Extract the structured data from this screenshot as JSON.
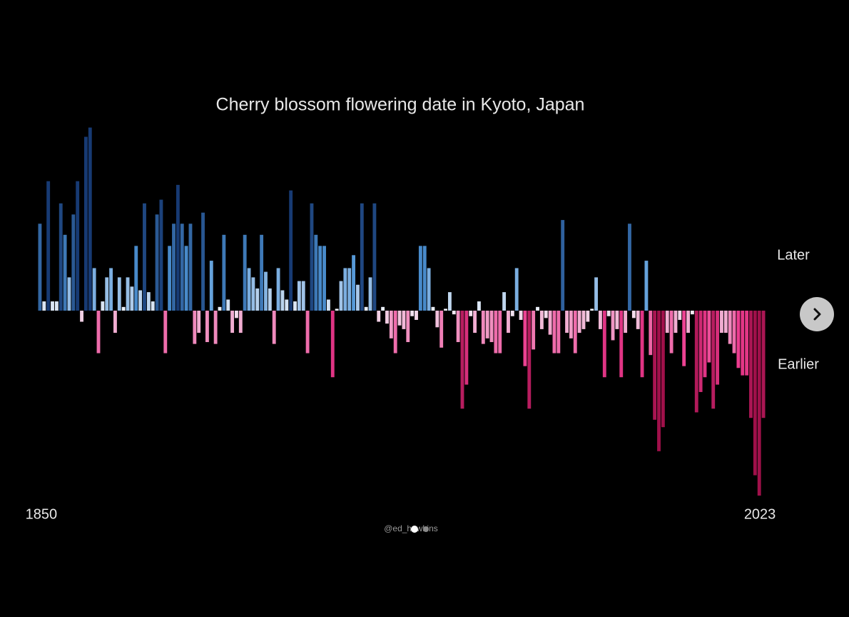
{
  "chart_data": {
    "type": "bar",
    "title": "Cherry blossom flowering date in Kyoto, Japan",
    "label_positive": "Later",
    "label_negative": "Earlier",
    "credit": "@ed_hawkins",
    "categories": [
      "1850",
      null,
      null,
      null,
      null,
      null,
      null,
      null,
      null,
      null,
      null,
      null,
      null,
      null,
      null,
      null,
      null,
      null,
      null,
      null,
      null,
      null,
      null,
      null,
      null,
      null,
      null,
      null,
      null,
      null,
      null,
      null,
      null,
      null,
      null,
      null,
      null,
      null,
      null,
      null,
      null,
      null,
      null,
      null,
      null,
      null,
      null,
      null,
      null,
      null,
      null,
      null,
      null,
      null,
      null,
      null,
      null,
      null,
      null,
      null,
      null,
      null,
      null,
      null,
      null,
      null,
      null,
      null,
      null,
      null,
      null,
      null,
      null,
      null,
      null,
      null,
      null,
      null,
      null,
      null,
      null,
      null,
      null,
      null,
      null,
      null,
      null,
      null,
      null,
      null,
      null,
      null,
      null,
      null,
      null,
      null,
      null,
      null,
      null,
      null,
      null,
      null,
      null,
      null,
      null,
      null,
      null,
      null,
      null,
      null,
      null,
      null,
      null,
      null,
      null,
      null,
      null,
      null,
      null,
      null,
      null,
      null,
      null,
      null,
      null,
      null,
      null,
      null,
      null,
      null,
      null,
      null,
      null,
      null,
      null,
      null,
      null,
      null,
      null,
      null,
      null,
      null,
      null,
      null,
      null,
      null,
      null,
      null,
      null,
      null,
      null,
      null,
      null,
      null,
      null,
      null,
      null,
      null,
      null,
      null,
      null,
      null,
      null,
      null,
      null,
      null,
      null,
      null,
      null,
      null,
      null,
      null,
      null,
      "2023"
    ],
    "values": [
      4.7,
      0.5,
      7.0,
      0.5,
      0.5,
      5.8,
      4.1,
      1.8,
      5.2,
      7.0,
      -0.6,
      9.4,
      9.9,
      2.3,
      -2.3,
      0.5,
      1.8,
      2.3,
      -1.2,
      1.8,
      0.2,
      1.8,
      1.3,
      3.5,
      1.1,
      5.8,
      1.0,
      0.5,
      5.2,
      6.0,
      -2.3,
      3.5,
      4.7,
      6.8,
      4.7,
      3.5,
      4.7,
      -1.8,
      -1.2,
      5.3,
      -1.7,
      2.7,
      -1.8,
      0.2,
      4.1,
      0.6,
      -1.2,
      -0.4,
      -1.2,
      4.1,
      2.3,
      1.8,
      1.2,
      4.1,
      2.1,
      1.2,
      -1.8,
      2.3,
      1.1,
      0.6,
      6.5,
      0.5,
      1.6,
      1.6,
      -2.3,
      5.8,
      4.1,
      3.5,
      3.5,
      0.6,
      -3.6,
      0.1,
      1.6,
      2.3,
      2.3,
      3.0,
      1.4,
      5.8,
      0.2,
      1.8,
      5.8,
      -0.6,
      0.2,
      -0.7,
      -1.5,
      -2.3,
      -0.8,
      -1.0,
      -1.7,
      -0.3,
      -0.5,
      3.5,
      3.5,
      2.3,
      0.2,
      -0.9,
      -2.0,
      0.1,
      1.0,
      -0.2,
      -1.7,
      -5.3,
      -4.0,
      -0.3,
      -1.2,
      0.5,
      -1.8,
      -1.5,
      -1.7,
      -2.3,
      -2.3,
      1.0,
      -1.2,
      -0.3,
      2.3,
      -0.5,
      -3.0,
      -5.3,
      -2.1,
      0.2,
      -1.0,
      -0.4,
      -1.3,
      -2.3,
      -2.3,
      4.9,
      -1.2,
      -1.5,
      -2.3,
      -1.2,
      -1.0,
      -0.6,
      0.1,
      1.8,
      -1.0,
      -3.6,
      -0.3,
      -1.6,
      -1.0,
      -3.6,
      -1.2,
      4.7,
      -0.4,
      -1.0,
      -3.6,
      2.7,
      -2.4,
      -5.9,
      -7.6,
      -6.3,
      -1.2,
      -2.3,
      -1.2,
      -0.5,
      -3.0,
      -1.2,
      -0.2,
      -5.5,
      -4.4,
      -3.6,
      -2.8,
      -5.3,
      -4.0,
      -1.2,
      -1.2,
      -1.8,
      -2.3,
      -3.1,
      -3.5,
      -3.5,
      -5.8,
      -8.9,
      -10.0,
      -5.8
    ],
    "ylim": [
      -10,
      10
    ],
    "colors": {
      "later": "#173a73",
      "later_mid": "#4f95d6",
      "neutral": "#f4f4fa",
      "earlier_mid": "#ec3b8e",
      "earlier": "#a0104a"
    }
  }
}
